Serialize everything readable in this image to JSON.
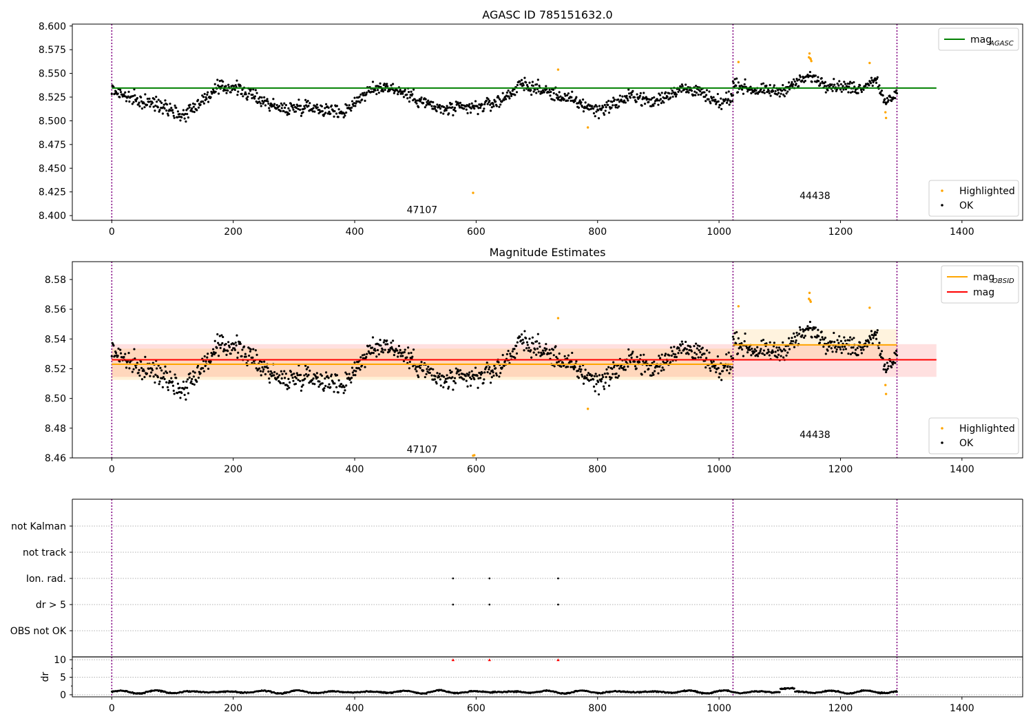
{
  "chart_data": [
    {
      "type": "scatter",
      "title": "AGASC ID 785151632.0",
      "xlim": [
        -65,
        1500
      ],
      "ylim": [
        8.395,
        8.602
      ],
      "xticks": [
        0,
        200,
        400,
        600,
        800,
        1000,
        1200,
        1400
      ],
      "yticks": [
        "8.400",
        "8.425",
        "8.450",
        "8.475",
        "8.500",
        "8.525",
        "8.550",
        "8.575",
        "8.600"
      ],
      "grid": false,
      "obs_boundaries": [
        0,
        1023,
        1293
      ],
      "obs_labels": [
        {
          "text": "47107",
          "x": 511,
          "y": 8.4025
        },
        {
          "text": "44438",
          "x": 1158,
          "y": 8.4175
        }
      ],
      "hlines": [
        {
          "name": "mag_AGASC",
          "color": "#008000",
          "y": 8.5345,
          "x": [
            0,
            1358
          ]
        }
      ],
      "ok_series": {
        "name": "OK",
        "color": "#000000",
        "segments": [
          {
            "x": [
              0,
              1023
            ],
            "mean": 8.522,
            "anchors": [
              [
                0,
                8.533
              ],
              [
                40,
                8.521
              ],
              [
                90,
                8.516
              ],
              [
                115,
                8.505
              ],
              [
                175,
                8.534
              ],
              [
                200,
                8.536
              ],
              [
                240,
                8.524
              ],
              [
                280,
                8.512
              ],
              [
                320,
                8.516
              ],
              [
                360,
                8.511
              ],
              [
                380,
                8.509
              ],
              [
                420,
                8.53
              ],
              [
                450,
                8.537
              ],
              [
                475,
                8.531
              ],
              [
                500,
                8.524
              ],
              [
                540,
                8.512
              ],
              [
                600,
                8.514
              ],
              [
                640,
                8.521
              ],
              [
                675,
                8.539
              ],
              [
                720,
                8.53
              ],
              [
                760,
                8.521
              ],
              [
                800,
                8.511
              ],
              [
                860,
                8.527
              ],
              [
                890,
                8.519
              ],
              [
                930,
                8.533
              ],
              [
                960,
                8.533
              ],
              [
                1000,
                8.517
              ],
              [
                1023,
                8.527
              ]
            ],
            "noise": 0.0065
          },
          {
            "x": [
              1023,
              1293
            ],
            "mean": 8.536,
            "anchors": [
              [
                1023,
                8.539
              ],
              [
                1060,
                8.532
              ],
              [
                1100,
                8.531
              ],
              [
                1150,
                8.547
              ],
              [
                1180,
                8.538
              ],
              [
                1230,
                8.534
              ],
              [
                1260,
                8.545
              ],
              [
                1272,
                8.518
              ],
              [
                1293,
                8.53
              ]
            ],
            "noise": 0.0055
          }
        ]
      },
      "highlighted_series": {
        "name": "Highlighted",
        "color": "#ffa500",
        "points": [
          [
            595,
            8.424
          ],
          [
            735,
            8.554
          ],
          [
            784,
            8.493
          ],
          [
            1032,
            8.562
          ],
          [
            1148,
            8.567
          ],
          [
            1149,
            8.571
          ],
          [
            1150,
            8.566
          ],
          [
            1151,
            8.565
          ],
          [
            1152,
            8.563
          ],
          [
            1248,
            8.561
          ],
          [
            1274,
            8.509
          ],
          [
            1275,
            8.503
          ]
        ]
      },
      "legend": [
        {
          "placement": "upper-right",
          "entries": [
            {
              "label": "mag",
              "sub": "AGASC",
              "marker": "line",
              "color": "#008000"
            }
          ]
        },
        {
          "placement": "lower-right",
          "entries": [
            {
              "label": "Highlighted",
              "marker": "dot",
              "color": "#ffa500"
            },
            {
              "label": "OK",
              "marker": "dot",
              "color": "#000000"
            }
          ]
        }
      ]
    },
    {
      "type": "scatter",
      "title": "Magnitude Estimates",
      "xlim": [
        -65,
        1500
      ],
      "ylim": [
        8.46,
        8.592
      ],
      "xticks": [
        0,
        200,
        400,
        600,
        800,
        1000,
        1200,
        1400
      ],
      "yticks": [
        "8.46",
        "8.48",
        "8.50",
        "8.52",
        "8.54",
        "8.56",
        "8.58"
      ],
      "grid": false,
      "obs_boundaries": [
        0,
        1023,
        1293
      ],
      "obs_labels": [
        {
          "text": "47107",
          "x": 511,
          "y": 8.4635
        },
        {
          "text": "44438",
          "x": 1158,
          "y": 8.4735
        }
      ],
      "bands": [
        {
          "color": "#ff0000",
          "opacity": 0.12,
          "x": [
            0,
            1358
          ],
          "y": [
            8.5145,
            8.5365
          ]
        },
        {
          "color": "#ffa500",
          "opacity": 0.16,
          "x": [
            0,
            1023
          ],
          "y": [
            8.5125,
            8.5335
          ]
        },
        {
          "color": "#ffa500",
          "opacity": 0.13,
          "x": [
            1023,
            1293
          ],
          "y": [
            8.5255,
            8.5465
          ]
        }
      ],
      "hlines": [
        {
          "name": "mag_OBSID",
          "color": "#ffa500",
          "y": 8.523,
          "x": [
            0,
            1023
          ]
        },
        {
          "name": "mag_OBSID",
          "color": "#ffa500",
          "y": 8.536,
          "x": [
            1023,
            1293
          ]
        },
        {
          "name": "mag",
          "color": "#ff0000",
          "y": 8.526,
          "x": [
            0,
            1358
          ]
        }
      ],
      "highlighted_series": {
        "name": "Highlighted",
        "color": "#ffa500",
        "points": [
          [
            595,
            8.4615
          ],
          [
            597,
            8.4618
          ],
          [
            735,
            8.554
          ],
          [
            784,
            8.493
          ],
          [
            1032,
            8.562
          ],
          [
            1148,
            8.567
          ],
          [
            1149,
            8.571
          ],
          [
            1150,
            8.566
          ],
          [
            1151,
            8.565
          ],
          [
            1248,
            8.561
          ],
          [
            1274,
            8.509
          ],
          [
            1275,
            8.503
          ]
        ]
      },
      "legend": [
        {
          "placement": "upper-right",
          "entries": [
            {
              "label": "mag",
              "sub": "OBSID",
              "marker": "line",
              "color": "#ffa500"
            },
            {
              "label": "mag",
              "sub": "",
              "marker": "line",
              "color": "#ff0000"
            }
          ]
        },
        {
          "placement": "lower-right",
          "entries": [
            {
              "label": "Highlighted",
              "marker": "dot",
              "color": "#ffa500"
            },
            {
              "label": "OK",
              "marker": "dot",
              "color": "#000000"
            }
          ]
        }
      ]
    },
    {
      "type": "scatter",
      "title": "",
      "xlim": [
        -65,
        1500
      ],
      "categories": [
        "not Kalman",
        "not track",
        "Ion. rad.",
        "dr > 5",
        "OBS not OK"
      ],
      "grid": true,
      "obs_boundaries": [
        0,
        1023,
        1293
      ],
      "flag_points": [
        {
          "category": "Ion. rad.",
          "x": [
            562,
            622,
            735
          ]
        },
        {
          "category": "dr > 5",
          "x": [
            562,
            622,
            735
          ]
        }
      ]
    },
    {
      "type": "scatter",
      "title": "",
      "xlim": [
        -65,
        1500
      ],
      "ylim": [
        -0.6,
        10.8
      ],
      "ylabel": "dr",
      "yticks": [
        "0",
        "5",
        "10"
      ],
      "xticks": [
        0,
        200,
        400,
        600,
        800,
        1000,
        1200,
        1400
      ],
      "grid": true,
      "obs_boundaries": [
        0,
        1023,
        1293
      ],
      "dr_series": {
        "name": "dr",
        "color": "#000000",
        "x": [
          0,
          1293
        ],
        "mean": 0.8,
        "amplitude": 0.45
      },
      "dr_clipped": {
        "color": "#ff0000",
        "x": [
          562,
          622,
          735
        ],
        "y": 10
      }
    }
  ]
}
